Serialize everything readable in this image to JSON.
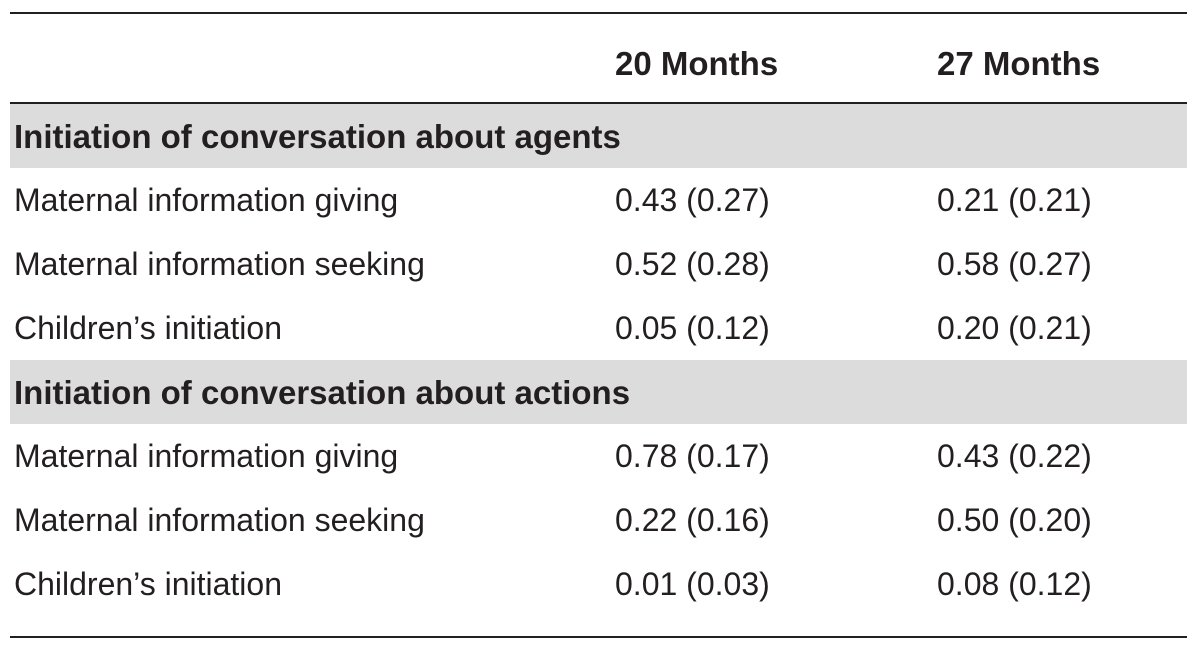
{
  "table": {
    "columns": [
      "",
      "20 Months",
      "27 Months"
    ],
    "sections": [
      {
        "title": "Initiation of conversation about agents",
        "rows": [
          {
            "label": "Maternal information giving",
            "m20": "0.43 (0.27)",
            "m27": "0.21 (0.21)"
          },
          {
            "label": "Maternal information seeking",
            "m20": "0.52 (0.28)",
            "m27": "0.58 (0.27)"
          },
          {
            "label": "Children’s initiation",
            "m20": "0.05 (0.12)",
            "m27": "0.20 (0.21)"
          }
        ]
      },
      {
        "title": "Initiation of conversation about actions",
        "rows": [
          {
            "label": "Maternal information giving",
            "m20": "0.78 (0.17)",
            "m27": "0.43 (0.22)"
          },
          {
            "label": "Maternal information seeking",
            "m20": "0.22 (0.16)",
            "m27": "0.50 (0.20)"
          },
          {
            "label": "Children’s initiation",
            "m20": "0.01 (0.03)",
            "m27": "0.08 (0.12)"
          }
        ]
      }
    ]
  }
}
